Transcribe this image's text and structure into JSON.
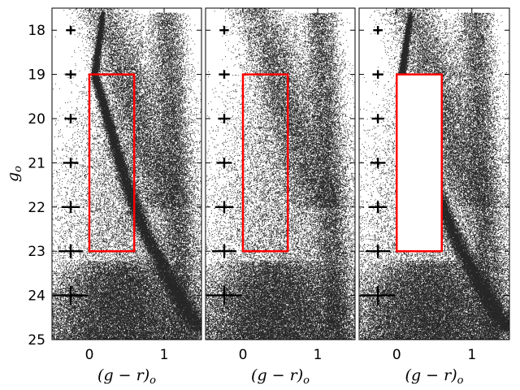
{
  "chart_data": {
    "type": "scatter",
    "description_free": true,
    "panels": [
      {
        "id": "left",
        "selection_box_filled_white": false,
        "sequence_density": "strong"
      },
      {
        "id": "middle",
        "selection_box_filled_white": false,
        "sequence_density": "none"
      },
      {
        "id": "right",
        "selection_box_filled_white": true,
        "sequence_density": "strong"
      }
    ],
    "xlim": [
      -0.5,
      1.5
    ],
    "ylim": [
      25,
      17.5
    ],
    "x_ticks": [
      0,
      1
    ],
    "x_tick_labels": [
      "0",
      "1"
    ],
    "y_ticks": [
      18,
      19,
      20,
      21,
      22,
      23,
      24,
      25
    ],
    "y_tick_labels": [
      "18",
      "19",
      "20",
      "21",
      "22",
      "23",
      "24",
      "25"
    ],
    "xlabel": "(g − r)o",
    "ylabel": "go",
    "selection_box": {
      "x": [
        0.0,
        0.6
      ],
      "y": [
        19.0,
        23.0
      ],
      "color": "#ff0000"
    },
    "error_bars": [
      {
        "g": 18,
        "x": -0.25,
        "xerr": 0.03,
        "yerr": 0.06
      },
      {
        "g": 19,
        "x": -0.25,
        "xerr": 0.04,
        "yerr": 0.06
      },
      {
        "g": 20,
        "x": -0.25,
        "xerr": 0.05,
        "yerr": 0.07
      },
      {
        "g": 21,
        "x": -0.25,
        "xerr": 0.07,
        "yerr": 0.08
      },
      {
        "g": 22,
        "x": -0.25,
        "xerr": 0.09,
        "yerr": 0.1
      },
      {
        "g": 23,
        "x": -0.25,
        "xerr": 0.13,
        "yerr": 0.12
      },
      {
        "g": 24,
        "x": -0.25,
        "xerr": 0.2,
        "yerr": 0.18
      }
    ]
  }
}
